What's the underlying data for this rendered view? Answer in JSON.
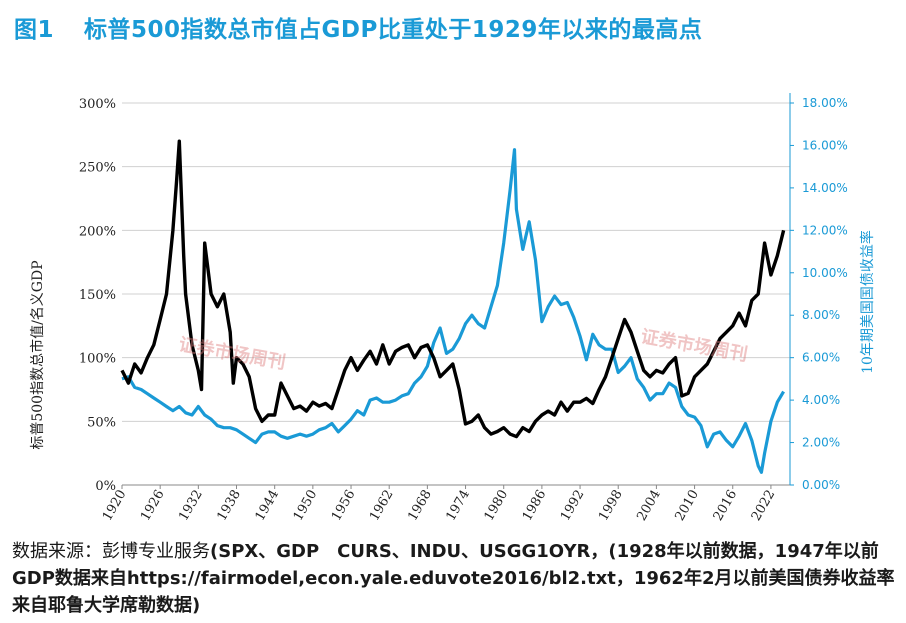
{
  "title": {
    "figure_label": "图1",
    "text": "标普500指数总市值占GDP比重处于1929年以来的最高点"
  },
  "source": {
    "prefix": "数据来源：彭博专业服务",
    "text": "(SPX、GDP　CURS、INDU、USGG1OYR，(1928年以前数据，1947年以前GDP数据来自https://fairmodel,econ.yale.eduvote2016/bl2.txt，1962年2月以前美国债券收益率来自耶鲁大学席勒数据)"
  },
  "watermark": "证券市场周刊",
  "colors": {
    "left_series": "#000000",
    "right_series": "#1a9ad6",
    "title": "#1a9ad6",
    "grid": "#d0d0d0"
  },
  "chart_data": {
    "type": "line",
    "title": "",
    "xlabel": "",
    "ylabel": "标普500指数总市值/名义GDP",
    "y2label": "10年期美国国债收益率",
    "xlim": [
      1920,
      2025
    ],
    "ylim": [
      0,
      300
    ],
    "y2lim": [
      0,
      18
    ],
    "grid": "horizontal",
    "x_ticks": [
      "1920",
      "1926",
      "1932",
      "1938",
      "1944",
      "1950",
      "1956",
      "1962",
      "1968",
      "1974",
      "1980",
      "1986",
      "1992",
      "1998",
      "2004",
      "2010",
      "2016",
      "2022"
    ],
    "y_ticks": [
      "0%",
      "50%",
      "100%",
      "150%",
      "200%",
      "250%",
      "300%"
    ],
    "y2_ticks": [
      "0.00%",
      "2.00%",
      "4.00%",
      "6.00%",
      "8.00%",
      "10.00%",
      "12.00%",
      "14.00%",
      "16.00%",
      "18.00%"
    ],
    "series": [
      {
        "axis": "left",
        "x": [
          1920,
          1921,
          1922,
          1923,
          1924,
          1925,
          1926,
          1927,
          1928,
          1928.6,
          1929,
          1929.7,
          1930,
          1931,
          1932,
          1932.5,
          1933,
          1934,
          1935,
          1936,
          1937,
          1937.5,
          1938,
          1939,
          1940,
          1941,
          1942,
          1943,
          1944,
          1945,
          1946,
          1947,
          1948,
          1949,
          1950,
          1951,
          1952,
          1953,
          1954,
          1955,
          1956,
          1957,
          1958,
          1959,
          1960,
          1961,
          1962,
          1963,
          1964,
          1965,
          1966,
          1967,
          1968,
          1969,
          1970,
          1971,
          1972,
          1973,
          1974,
          1975,
          1976,
          1977,
          1978,
          1979,
          1980,
          1981,
          1982,
          1983,
          1984,
          1985,
          1986,
          1987,
          1988,
          1989,
          1990,
          1991,
          1992,
          1993,
          1994,
          1995,
          1996,
          1997,
          1998,
          1999,
          2000,
          2001,
          2002,
          2003,
          2004,
          2005,
          2006,
          2007,
          2008,
          2009,
          2010,
          2011,
          2012,
          2013,
          2014,
          2015,
          2016,
          2017,
          2018,
          2019,
          2020,
          2021,
          2022,
          2023,
          2024
        ],
        "values": [
          90,
          80,
          95,
          88,
          100,
          110,
          130,
          150,
          200,
          240,
          270,
          180,
          150,
          110,
          90,
          75,
          190,
          150,
          140,
          150,
          120,
          80,
          100,
          95,
          85,
          60,
          50,
          55,
          55,
          80,
          70,
          60,
          62,
          58,
          65,
          62,
          64,
          60,
          75,
          90,
          100,
          90,
          98,
          105,
          95,
          110,
          95,
          105,
          108,
          110,
          100,
          108,
          110,
          100,
          85,
          90,
          95,
          75,
          48,
          50,
          55,
          45,
          40,
          42,
          45,
          40,
          38,
          45,
          42,
          50,
          55,
          58,
          55,
          65,
          58,
          65,
          65,
          68,
          64,
          75,
          85,
          100,
          115,
          130,
          120,
          105,
          90,
          85,
          90,
          88,
          95,
          100,
          70,
          72,
          85,
          90,
          95,
          105,
          115,
          120,
          125,
          135,
          125,
          145,
          150,
          190,
          165,
          180,
          200
        ]
      },
      {
        "axis": "right",
        "x": [
          1920,
          1921,
          1922,
          1923,
          1924,
          1925,
          1926,
          1927,
          1928,
          1929,
          1930,
          1931,
          1932,
          1933,
          1934,
          1935,
          1936,
          1937,
          1938,
          1939,
          1940,
          1941,
          1942,
          1943,
          1944,
          1945,
          1946,
          1947,
          1948,
          1949,
          1950,
          1951,
          1952,
          1953,
          1954,
          1955,
          1956,
          1957,
          1958,
          1959,
          1960,
          1961,
          1962,
          1963,
          1964,
          1965,
          1966,
          1967,
          1968,
          1969,
          1970,
          1971,
          1972,
          1973,
          1974,
          1975,
          1976,
          1977,
          1978,
          1979,
          1980,
          1981,
          1981.7,
          1982,
          1983,
          1984,
          1985,
          1986,
          1987,
          1988,
          1989,
          1990,
          1991,
          1992,
          1993,
          1994,
          1995,
          1996,
          1997,
          1998,
          1999,
          2000,
          2001,
          2002,
          2003,
          2004,
          2005,
          2006,
          2007,
          2008,
          2009,
          2010,
          2011,
          2012,
          2013,
          2014,
          2015,
          2016,
          2017,
          2018,
          2019,
          2020,
          2020.5,
          2021,
          2022,
          2023,
          2024
        ],
        "values": [
          5.0,
          5.1,
          4.6,
          4.5,
          4.3,
          4.1,
          3.9,
          3.7,
          3.5,
          3.7,
          3.4,
          3.3,
          3.7,
          3.3,
          3.1,
          2.8,
          2.7,
          2.7,
          2.6,
          2.4,
          2.2,
          2.0,
          2.4,
          2.5,
          2.5,
          2.3,
          2.2,
          2.3,
          2.4,
          2.3,
          2.4,
          2.6,
          2.7,
          2.9,
          2.5,
          2.8,
          3.1,
          3.5,
          3.3,
          4.0,
          4.1,
          3.9,
          3.9,
          4.0,
          4.2,
          4.3,
          4.8,
          5.1,
          5.6,
          6.7,
          7.4,
          6.2,
          6.4,
          6.9,
          7.6,
          8.0,
          7.6,
          7.4,
          8.4,
          9.4,
          11.4,
          13.9,
          15.8,
          13.0,
          11.1,
          12.4,
          10.6,
          7.7,
          8.4,
          8.9,
          8.5,
          8.6,
          7.9,
          7.0,
          5.9,
          7.1,
          6.6,
          6.4,
          6.4,
          5.3,
          5.6,
          6.0,
          5.0,
          4.6,
          4.0,
          4.3,
          4.3,
          4.8,
          4.6,
          3.7,
          3.3,
          3.2,
          2.8,
          1.8,
          2.4,
          2.5,
          2.1,
          1.8,
          2.3,
          2.9,
          2.1,
          0.9,
          0.6,
          1.5,
          3.0,
          3.9,
          4.4
        ]
      }
    ]
  }
}
